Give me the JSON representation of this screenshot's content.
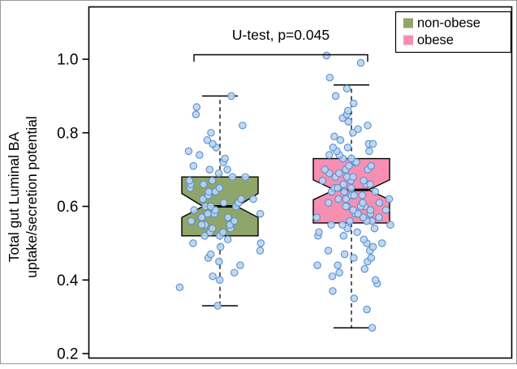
{
  "chart_data": {
    "type": "box",
    "title": "",
    "ylabel_line1": "Total gut Luminal BA",
    "ylabel_line2": "uptake/secretion potential",
    "yticks": [
      0.2,
      0.4,
      0.6,
      0.8,
      1.0
    ],
    "ytick_labels": [
      "0.2",
      "0.4",
      "0.6",
      "0.8",
      "1.0"
    ],
    "ylim": [
      0.185,
      1.145
    ],
    "grid": false,
    "annotation": {
      "text": "U-test, p=0.045",
      "level": 1.01
    },
    "legend": {
      "position": "top-right",
      "entries": [
        {
          "label": "non-obese",
          "color": "#8fa56a"
        },
        {
          "label": "obese",
          "color": "#f78fb3"
        }
      ]
    },
    "point_style": {
      "fill": "#b9d5f2",
      "stroke": "#5a8fcb",
      "radius": 4.2,
      "opacity": 0.9
    },
    "groups": [
      {
        "name": "non-obese",
        "color": "#8fa56a",
        "median": 0.6,
        "q1": 0.52,
        "q3": 0.68,
        "notch_low": 0.57,
        "notch_high": 0.635,
        "whisker_low": 0.33,
        "whisker_high": 0.9,
        "points": [
          0.33,
          0.38,
          0.4,
          0.41,
          0.42,
          0.44,
          0.45,
          0.46,
          0.47,
          0.48,
          0.49,
          0.5,
          0.5,
          0.51,
          0.52,
          0.52,
          0.53,
          0.53,
          0.54,
          0.54,
          0.55,
          0.55,
          0.55,
          0.56,
          0.56,
          0.57,
          0.57,
          0.58,
          0.58,
          0.58,
          0.59,
          0.59,
          0.6,
          0.6,
          0.6,
          0.61,
          0.61,
          0.61,
          0.62,
          0.62,
          0.62,
          0.63,
          0.63,
          0.64,
          0.64,
          0.65,
          0.65,
          0.66,
          0.66,
          0.67,
          0.67,
          0.68,
          0.68,
          0.69,
          0.7,
          0.7,
          0.71,
          0.72,
          0.73,
          0.74,
          0.75,
          0.76,
          0.77,
          0.78,
          0.8,
          0.82,
          0.85,
          0.87,
          0.9
        ]
      },
      {
        "name": "obese",
        "color": "#f78fb3",
        "median": 0.645,
        "q1": 0.555,
        "q3": 0.73,
        "notch_low": 0.618,
        "notch_high": 0.672,
        "whisker_low": 0.27,
        "whisker_high": 0.93,
        "points": [
          0.27,
          0.32,
          0.35,
          0.37,
          0.39,
          0.4,
          0.41,
          0.42,
          0.43,
          0.44,
          0.44,
          0.45,
          0.46,
          0.46,
          0.47,
          0.48,
          0.48,
          0.49,
          0.5,
          0.5,
          0.51,
          0.52,
          0.52,
          0.53,
          0.53,
          0.54,
          0.54,
          0.55,
          0.55,
          0.55,
          0.56,
          0.56,
          0.56,
          0.57,
          0.57,
          0.57,
          0.58,
          0.58,
          0.58,
          0.59,
          0.59,
          0.59,
          0.6,
          0.6,
          0.6,
          0.6,
          0.61,
          0.61,
          0.61,
          0.62,
          0.62,
          0.62,
          0.63,
          0.63,
          0.63,
          0.64,
          0.64,
          0.64,
          0.65,
          0.65,
          0.65,
          0.66,
          0.66,
          0.66,
          0.67,
          0.67,
          0.67,
          0.68,
          0.68,
          0.68,
          0.69,
          0.69,
          0.7,
          0.7,
          0.7,
          0.71,
          0.71,
          0.72,
          0.72,
          0.73,
          0.73,
          0.74,
          0.74,
          0.75,
          0.75,
          0.76,
          0.76,
          0.77,
          0.77,
          0.78,
          0.79,
          0.8,
          0.81,
          0.82,
          0.83,
          0.84,
          0.85,
          0.86,
          0.88,
          0.9,
          0.92,
          0.95,
          0.99,
          1.01
        ]
      }
    ]
  }
}
